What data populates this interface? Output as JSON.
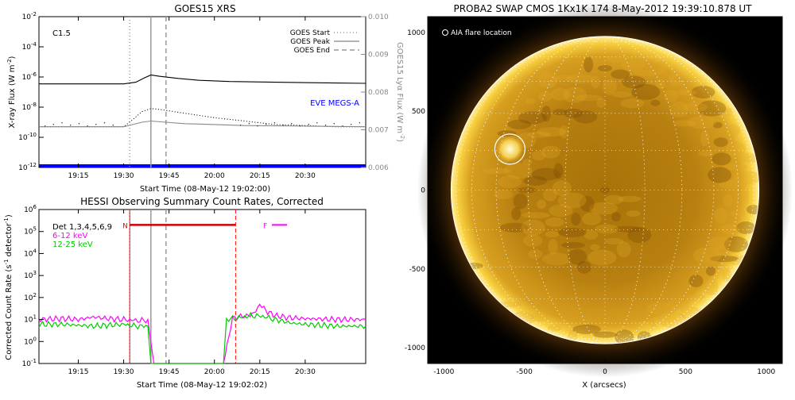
{
  "chart_data": [
    {
      "type": "line",
      "title": "GOES15 XRS",
      "xlabel": "Start Time (08-May-12 19:02:00)",
      "ylabel": "X-ray Flux (W m^-2)",
      "ylabel_right": "GOES15 Lyα Flux (W m^-2)",
      "xlim": [
        "19:02",
        "20:50"
      ],
      "x_ticks": [
        "19:15",
        "19:30",
        "19:45",
        "20:00",
        "20:15",
        "20:30"
      ],
      "y_scale": "log",
      "ylim": [
        1e-12,
        0.01
      ],
      "y_ticks": [
        "10^-12",
        "10^-10",
        "10^-8",
        "10^-6",
        "10^-4",
        "10^-2"
      ],
      "y2lim": [
        0.006,
        0.01
      ],
      "y2_ticks": [
        "0.006",
        "0.007",
        "0.008",
        "0.009",
        "0.010"
      ],
      "annotation": "C1.5",
      "eve_label": "EVE MEGS-A",
      "eve_color": "#0000ff",
      "legend": [
        {
          "name": "GOES Start",
          "style": "dotted",
          "time": "19:32"
        },
        {
          "name": "GOES Peak",
          "style": "solid",
          "time": "19:39"
        },
        {
          "name": "GOES End",
          "style": "dashed",
          "time": "19:44"
        }
      ],
      "series": [
        {
          "name": "",
          "color": "#000000",
          "x": [
            "19:02",
            "19:30",
            "19:34",
            "19:37",
            "19:39",
            "19:42",
            "19:48",
            "19:55",
            "20:05",
            "20:20",
            "20:40",
            "20:50"
          ],
          "y": [
            3.5e-07,
            3.5e-07,
            4.5e-07,
            9e-07,
            1.35e-06,
            1.1e-06,
            8e-07,
            6e-07,
            5e-07,
            4.5e-07,
            4e-07,
            3.8e-07
          ]
        },
        {
          "name": "",
          "color": "#000000",
          "style": "dotted",
          "x": [
            "19:02",
            "19:30",
            "19:33",
            "19:36",
            "19:39",
            "19:42",
            "19:50",
            "20:00",
            "20:10",
            "20:20",
            "20:30",
            "20:40",
            "20:50"
          ],
          "y": [
            5e-10,
            5e-10,
            1.5e-09,
            5e-09,
            8e-09,
            7e-09,
            4e-09,
            2e-09,
            1.2e-09,
            7e-10,
            6e-10,
            5e-10,
            5e-10
          ]
        },
        {
          "name": "",
          "color": "#888888",
          "x": [
            "19:02",
            "19:30",
            "19:33",
            "19:36",
            "19:39",
            "19:44",
            "19:50",
            "20:00",
            "20:10",
            "20:30",
            "20:50"
          ],
          "y": [
            5e-10,
            5e-10,
            7e-10,
            1e-09,
            1.2e-09,
            1e-09,
            8e-10,
            7e-10,
            6e-10,
            5.5e-10,
            5e-10
          ]
        }
      ]
    },
    {
      "type": "line",
      "title": "HESSI Observing Summary Count Rates, Corrected",
      "xlabel": "Start Time (08-May-12 19:02:02)",
      "ylabel": "Corrected Count Rate (s^-1 detector^-1)",
      "xlim": [
        "19:02",
        "20:50"
      ],
      "x_ticks": [
        "19:15",
        "19:30",
        "19:45",
        "20:00",
        "20:15",
        "20:30"
      ],
      "y_scale": "log",
      "ylim": [
        0.1,
        1000000.0
      ],
      "y_ticks": [
        "10^-1",
        "10^0",
        "10^1",
        "10^2",
        "10^3",
        "10^4",
        "10^5",
        "10^6"
      ],
      "legend_text": [
        "Det 1,3,4,5,6,9",
        "6-12 keV",
        "12-25 keV"
      ],
      "annotations": [
        {
          "text": "N",
          "color": "#ff0000"
        },
        {
          "text": "F",
          "color": "#ff00ff"
        }
      ],
      "night_interval": {
        "start": "19:32",
        "end": "20:07",
        "level": 200000.0,
        "color": "#cc0000"
      },
      "flare_marker": {
        "start": "20:19",
        "end": "20:24",
        "level": 200000.0,
        "color": "#ff00ff"
      },
      "series": [
        {
          "name": "6-12 keV",
          "color": "#ff00ff",
          "x": [
            "19:02",
            "19:10",
            "19:15",
            "19:20",
            "19:25",
            "19:30",
            "19:34",
            "19:38",
            "19:40",
            "20:03",
            "20:06",
            "20:10",
            "20:13",
            "20:15",
            "20:17",
            "20:20",
            "20:25",
            "20:30",
            "20:40",
            "20:50"
          ],
          "y": [
            10,
            11,
            10,
            13,
            11,
            10,
            9,
            9,
            0.1,
            0.1,
            12,
            14,
            18,
            50,
            25,
            15,
            12,
            11,
            10,
            10
          ]
        },
        {
          "name": "12-25 keV",
          "color": "#00cc00",
          "x": [
            "19:02",
            "19:10",
            "19:20",
            "19:30",
            "19:34",
            "19:38",
            "19:39",
            "20:03",
            "20:04",
            "20:08",
            "20:12",
            "20:16",
            "20:20",
            "20:25",
            "20:30",
            "20:40",
            "20:50"
          ],
          "y": [
            6,
            6,
            5,
            6,
            5,
            5,
            0.1,
            0.1,
            10,
            12,
            15,
            14,
            10,
            7,
            6,
            5,
            5
          ]
        }
      ]
    },
    {
      "type": "image",
      "title": "PROBA2 SWAP CMOS 1Kx1K 174  8-May-2012 19:39:10.878 UT",
      "xlabel": "X (arcsecs)",
      "ylabel": "",
      "xlim": [
        -1100,
        1100
      ],
      "ylim": [
        -1100,
        1100
      ],
      "x_ticks": [
        "-1000",
        "-500",
        "0",
        "500",
        "1000"
      ],
      "y_ticks": [
        "-1000",
        "-500",
        "0",
        "500",
        "1000"
      ],
      "annotation": "AIA flare location",
      "flare_location": {
        "x": -590,
        "y": 260
      },
      "solar_radius_arcsec": 955
    }
  ]
}
